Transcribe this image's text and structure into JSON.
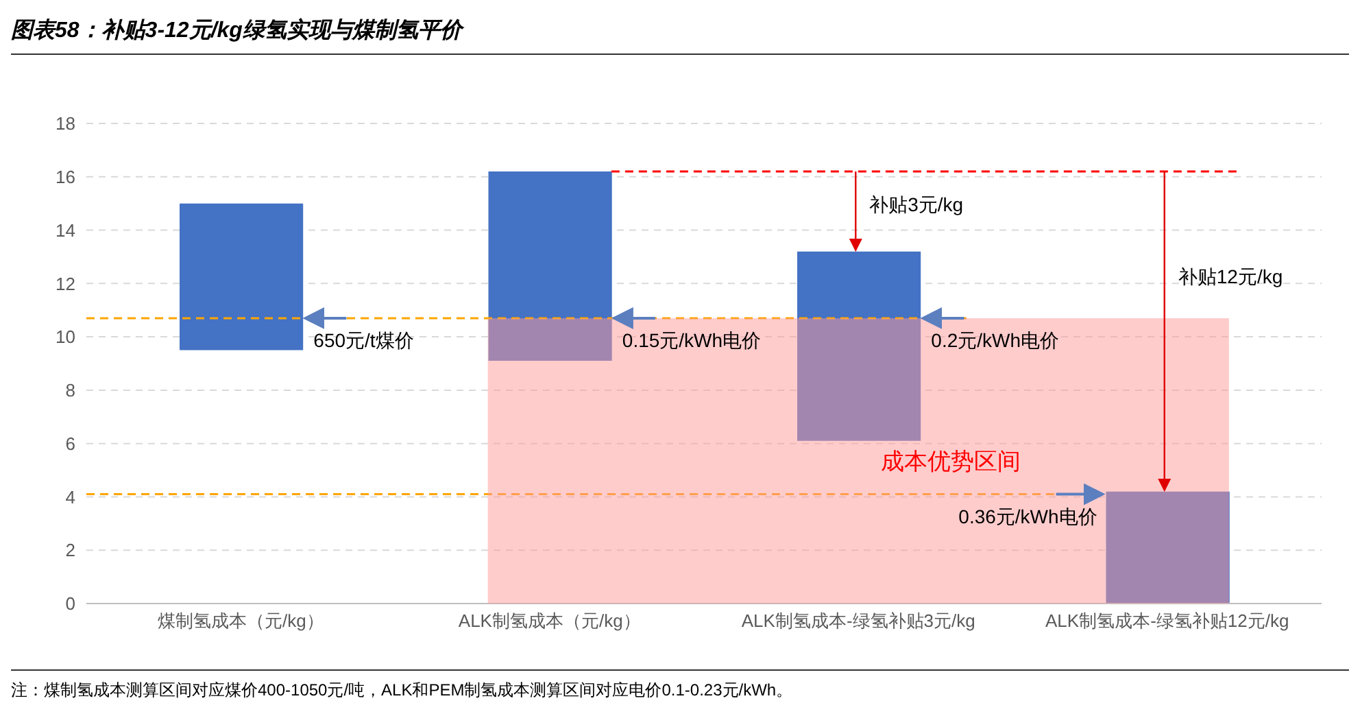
{
  "chart_data": {
    "type": "bar",
    "title": "图表58：补贴3-12元/kg绿氢实现与煤制氢平价",
    "categories": [
      "煤制氢成本（元/kg）",
      "ALK制氢成本（元/kg）",
      "ALK制氢成本-绿氢补贴3元/kg",
      "ALK制氢成本-绿氢补贴12元/kg"
    ],
    "values": [
      5.5,
      7.1,
      7.1,
      4.2
    ],
    "base": [
      9.5,
      9.1,
      6.1,
      0
    ],
    "colors": [
      "#4472c4",
      "#4472c4",
      "#4472c4",
      "#4472c4"
    ],
    "ylim": [
      0,
      18
    ],
    "yticks": [
      0,
      2,
      4,
      6,
      8,
      10,
      12,
      14,
      16,
      18
    ],
    "grid": "y",
    "ref_lines": [
      {
        "axis": "y",
        "value": 10.7,
        "color": "#ffa500",
        "line_style": "dashed"
      },
      {
        "axis": "y",
        "value": 4.1,
        "color": "#ffa500",
        "line_style": "dashed"
      },
      {
        "axis": "y",
        "value": 16.2,
        "color": "#ff0000",
        "line_style": "dashed"
      }
    ],
    "bands": [
      {
        "axis": "y",
        "from": 0,
        "to": 10.7,
        "label": "成本优势区间",
        "color": "#ff9999"
      }
    ],
    "annotations": [
      "650元/t煤价",
      "0.15元/kWh电价",
      "0.2元/kWh电价",
      "0.36元/kWh电价",
      "补贴3元/kg",
      "补贴12元/kg",
      "注：煤制氢成本测算区间对应煤价400-1050元/吨，ALK和PEM制氢成本测算区间对应电价0.1-0.23元/kWh。"
    ]
  }
}
